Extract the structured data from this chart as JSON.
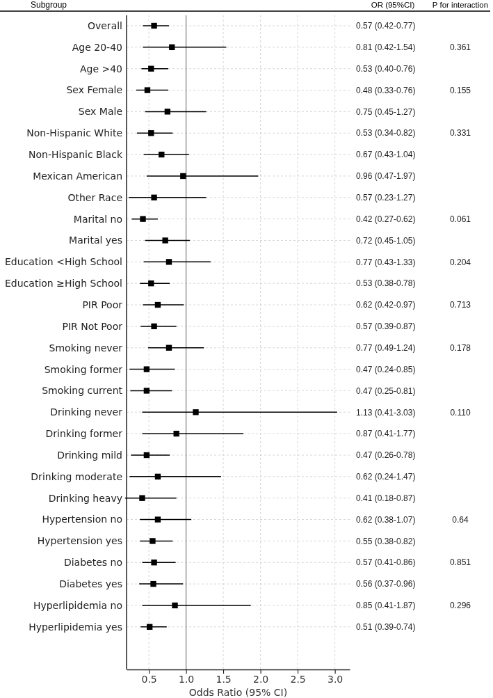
{
  "chart_data": {
    "type": "scatter",
    "orientation": "horizontal",
    "ylabel": "Subgroup",
    "xlabel": "Odds Ratio (95% CI)",
    "categories": [
      "Overall",
      "Age 20-40",
      "Age >40",
      "Sex Female",
      "Sex Male",
      "Non-Hispanic White",
      "Non-Hispanic Black",
      "Mexican American",
      "Other Race",
      "Marital no",
      "Marital yes",
      "Education <High School",
      "Education ≥High School",
      "PIR Poor",
      "PIR Not Poor",
      "Smoking never",
      "Smoking former",
      "Smoking current",
      "Drinking never",
      "Drinking former",
      "Drinking mild",
      "Drinking moderate",
      "Drinking heavy",
      "Hypertension no",
      "Hypertension yes",
      "Diabetes no",
      "Diabetes yes",
      "Hyperlipidemia no",
      "Hyperlipidemia yes"
    ],
    "values": [
      0.57,
      0.81,
      0.53,
      0.48,
      0.75,
      0.53,
      0.67,
      0.96,
      0.57,
      0.42,
      0.72,
      0.77,
      0.53,
      0.62,
      0.57,
      0.77,
      0.47,
      0.47,
      1.13,
      0.87,
      0.47,
      0.62,
      0.41,
      0.62,
      0.55,
      0.57,
      0.56,
      0.85,
      0.51
    ],
    "errors": [
      [
        0.42,
        0.77
      ],
      [
        0.42,
        1.54
      ],
      [
        0.4,
        0.76
      ],
      [
        0.33,
        0.76
      ],
      [
        0.45,
        1.27
      ],
      [
        0.34,
        0.82
      ],
      [
        0.43,
        1.04
      ],
      [
        0.47,
        1.97
      ],
      [
        0.23,
        1.27
      ],
      [
        0.27,
        0.62
      ],
      [
        0.45,
        1.05
      ],
      [
        0.43,
        1.33
      ],
      [
        0.38,
        0.78
      ],
      [
        0.42,
        0.97
      ],
      [
        0.39,
        0.87
      ],
      [
        0.49,
        1.24
      ],
      [
        0.24,
        0.85
      ],
      [
        0.25,
        0.81
      ],
      [
        0.41,
        3.03
      ],
      [
        0.41,
        1.77
      ],
      [
        0.26,
        0.78
      ],
      [
        0.24,
        1.47
      ],
      [
        0.18,
        0.87
      ],
      [
        0.38,
        1.07
      ],
      [
        0.38,
        0.82
      ],
      [
        0.41,
        0.86
      ],
      [
        0.37,
        0.96
      ],
      [
        0.41,
        1.87
      ],
      [
        0.39,
        0.74
      ]
    ],
    "value_labels": [
      "0.57 (0.42-0.77)",
      "0.81 (0.42-1.54)",
      "0.53 (0.40-0.76)",
      "0.48 (0.33-0.76)",
      "0.75 (0.45-1.27)",
      "0.53 (0.34-0.82)",
      "0.67 (0.43-1.04)",
      "0.96 (0.47-1.97)",
      "0.57 (0.23-1.27)",
      "0.42 (0.27-0.62)",
      "0.72 (0.45-1.05)",
      "0.77 (0.43-1.33)",
      "0.53 (0.38-0.78)",
      "0.62 (0.42-0.97)",
      "0.57 (0.39-0.87)",
      "0.77 (0.49-1.24)",
      "0.47 (0.24-0.85)",
      "0.47 (0.25-0.81)",
      "1.13 (0.41-3.03)",
      "0.87 (0.41-1.77)",
      "0.47 (0.26-0.78)",
      "0.62 (0.24-1.47)",
      "0.41 (0.18-0.87)",
      "0.62 (0.38-1.07)",
      "0.55 (0.38-0.82)",
      "0.57 (0.41-0.86)",
      "0.56 (0.37-0.96)",
      "0.85 (0.41-1.87)",
      "0.51 (0.39-0.74)"
    ],
    "color": "#000000",
    "marker": "square",
    "grid": true,
    "xlim": [
      0.2,
      3.2
    ],
    "xticks": [
      {
        "value": 0.5,
        "label": "0.5"
      },
      {
        "value": 1,
        "label": "1.0"
      },
      {
        "value": 1.5,
        "label": "1.5"
      },
      {
        "value": 2,
        "label": "2.0"
      },
      {
        "value": 2.5,
        "label": "2.5"
      },
      {
        "value": 3,
        "label": "3.0"
      }
    ],
    "ref_lines": [
      {
        "axis": "x",
        "value": 1,
        "color": "#999999"
      }
    ],
    "annotations": [
      "OR (95%CI)",
      "P for interaction",
      "0.361",
      "0.155",
      "0.331",
      "0.061",
      "0.204",
      "0.713",
      "0.178",
      "0.110",
      "0.64",
      "0.851",
      "0.296"
    ]
  }
}
